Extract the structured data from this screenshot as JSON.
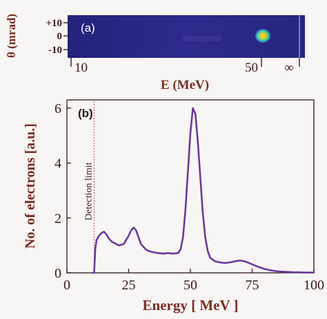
{
  "panel_a": {
    "label": "(a)",
    "ylabel": "θ (mrad)",
    "y_ticks": [
      "+10",
      "0",
      "-10"
    ],
    "x_ticks": [
      "10",
      "50",
      "∞"
    ],
    "xlabel": "E (MeV)",
    "colors": {
      "background": "#2b2a8a",
      "hot": "#ffd21a",
      "spot": "#3adf8a"
    }
  },
  "chart_data": {
    "type": "line",
    "label": "(b)",
    "xlabel": "Energy [ MeV ]",
    "ylabel": "No. of electrons [a.u.]",
    "xlim": [
      0,
      100
    ],
    "ylim": [
      0,
      6.3
    ],
    "x_ticks": [
      0,
      25,
      50,
      75,
      100
    ],
    "y_ticks": [
      0,
      2,
      4,
      6
    ],
    "annotation": {
      "text": "Detection limit",
      "x": 11
    },
    "series": [
      {
        "color": "#6a3a9a",
        "x": [
          10,
          11,
          11.5,
          12,
          13,
          14,
          15,
          16,
          17,
          18,
          19,
          20,
          21,
          22,
          23,
          24,
          25,
          26,
          27,
          28,
          29,
          30,
          31,
          32,
          33,
          35,
          37,
          39,
          41,
          43,
          45,
          46,
          47,
          48,
          49,
          50,
          51,
          52,
          53,
          54,
          55,
          56,
          57,
          58,
          60,
          62,
          64,
          66,
          68,
          70,
          72,
          74,
          76,
          78,
          80,
          82,
          84,
          86,
          88,
          90,
          92,
          94,
          96,
          98,
          100
        ],
        "y": [
          0,
          0,
          0.9,
          1.2,
          1.35,
          1.45,
          1.5,
          1.4,
          1.25,
          1.15,
          1.1,
          1.05,
          1.0,
          1.02,
          1.05,
          1.2,
          1.35,
          1.55,
          1.65,
          1.55,
          1.3,
          1.05,
          0.95,
          0.85,
          0.8,
          0.75,
          0.72,
          0.7,
          0.72,
          0.7,
          0.72,
          0.85,
          1.3,
          2.3,
          3.7,
          5.1,
          6.0,
          5.8,
          4.8,
          3.5,
          2.2,
          1.3,
          0.8,
          0.55,
          0.42,
          0.38,
          0.36,
          0.38,
          0.42,
          0.45,
          0.42,
          0.35,
          0.27,
          0.2,
          0.14,
          0.1,
          0.07,
          0.05,
          0.04,
          0.03,
          0.02,
          0.02,
          0.01,
          0.01,
          0.01
        ]
      }
    ]
  }
}
